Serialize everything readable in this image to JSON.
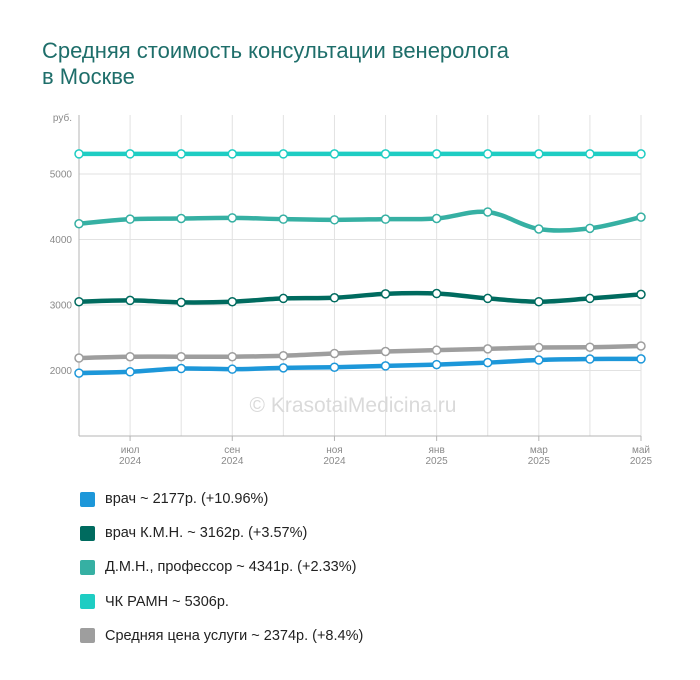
{
  "chart_data": {
    "type": "line",
    "title": [
      "Средняя стоимость консультации венеролога",
      "в Москве"
    ],
    "ylabel": "руб.",
    "ylim": [
      1000,
      5900
    ],
    "yticks": [
      "2000",
      "3000",
      "4000",
      "5000"
    ],
    "grid": true,
    "x_points": 12,
    "x_ticks": [
      {
        "index": 1,
        "month": "июл",
        "year": "2024"
      },
      {
        "index": 3,
        "month": "сен",
        "year": "2024"
      },
      {
        "index": 5,
        "month": "ноя",
        "year": "2024"
      },
      {
        "index": 7,
        "month": "янв",
        "year": "2025"
      },
      {
        "index": 9,
        "month": "мар",
        "year": "2025"
      },
      {
        "index": 11,
        "month": "май",
        "year": "2025"
      }
    ],
    "legend_position": "bottom",
    "series": [
      {
        "key": "avg",
        "color": "#9e9e9e",
        "values": [
          2190,
          2210,
          2210,
          2210,
          2225,
          2260,
          2290,
          2310,
          2330,
          2350,
          2355,
          2374
        ]
      },
      {
        "key": "doctor",
        "color": "#1d97d9",
        "values": [
          1960,
          1980,
          2030,
          2020,
          2040,
          2050,
          2070,
          2090,
          2120,
          2160,
          2175,
          2177
        ]
      },
      {
        "key": "kmn",
        "color": "#006b5f",
        "values": [
          3050,
          3070,
          3040,
          3050,
          3100,
          3110,
          3170,
          3175,
          3100,
          3050,
          3100,
          3162
        ]
      },
      {
        "key": "dmn",
        "color": "#36b0a3",
        "values": [
          4240,
          4310,
          4320,
          4330,
          4310,
          4300,
          4310,
          4320,
          4420,
          4160,
          4170,
          4341
        ]
      },
      {
        "key": "chk",
        "color": "#1ecdc3",
        "values": [
          5306,
          5306,
          5306,
          5306,
          5306,
          5306,
          5306,
          5306,
          5306,
          5306,
          5306,
          5306
        ]
      }
    ]
  },
  "legend": [
    {
      "label": "врач ~ 2177р. (+10.96%)",
      "color": "#1d97d9"
    },
    {
      "label": "врач К.М.Н. ~ 3162р. (+3.57%)",
      "color": "#006b5f"
    },
    {
      "label": "Д.М.Н., профессор ~ 4341р. (+2.33%)",
      "color": "#36b0a3"
    },
    {
      "label": "ЧК РАМН ~ 5306р.",
      "color": "#1ecdc3"
    },
    {
      "label": "Средняя цена услуги ~ 2374р. (+8.4%)",
      "color": "#9e9e9e"
    }
  ],
  "watermark": "© KrasotaiMedicina.ru"
}
